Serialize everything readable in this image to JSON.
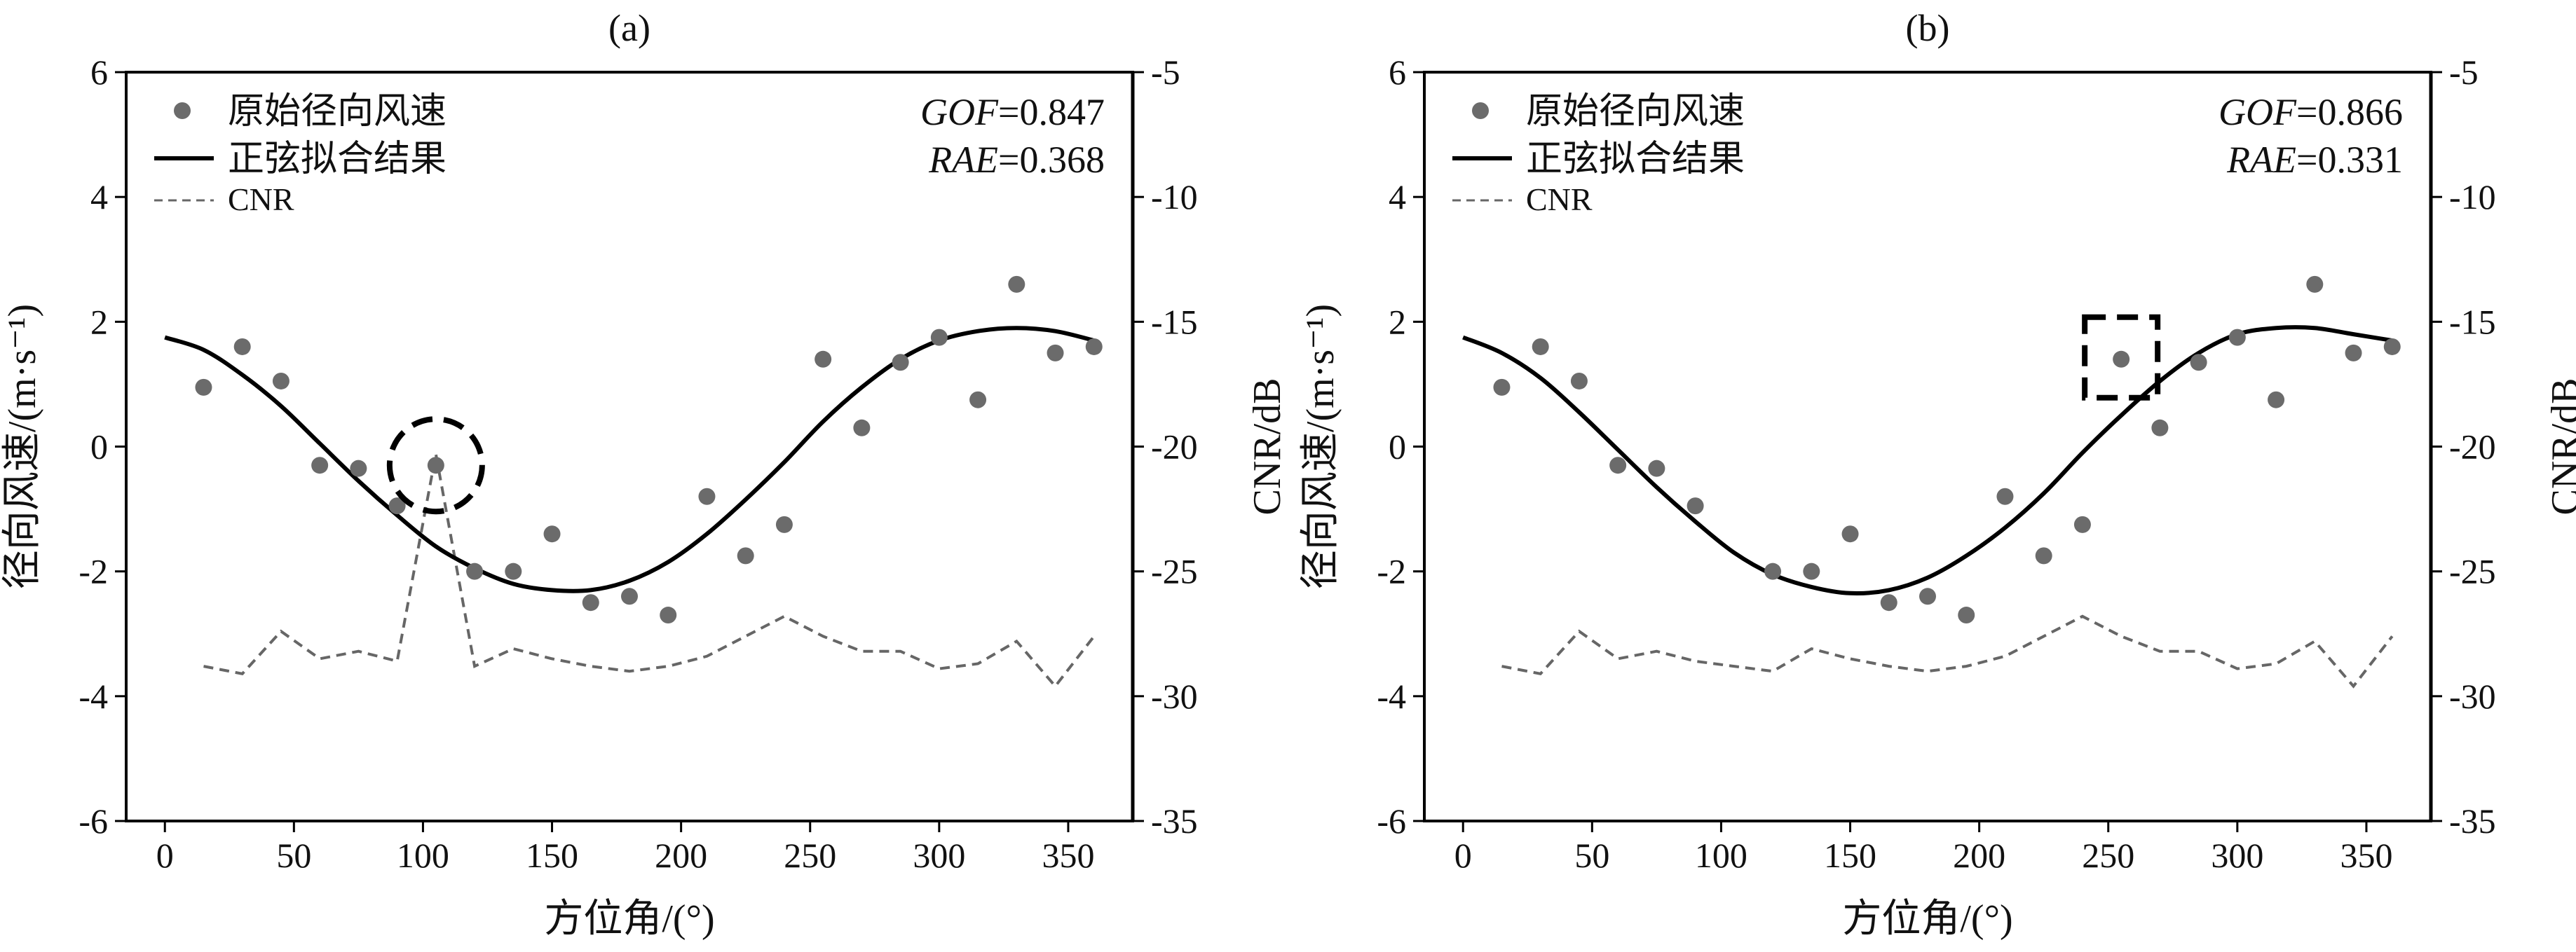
{
  "chart_data": [
    {
      "type": "scatter+line",
      "panel_label": "(a)",
      "xlabel": "方位角/(°)",
      "ylabel_left": "径向风速/(m·s⁻¹)",
      "ylabel_right": "CNR/dB",
      "xlim": [
        -15,
        375
      ],
      "ylim_left": [
        -6,
        6
      ],
      "ylim_right": [
        -35,
        -5
      ],
      "x_ticks": [
        0,
        50,
        100,
        150,
        200,
        250,
        300,
        350
      ],
      "y_left_ticks": [
        -6,
        -4,
        -2,
        0,
        2,
        4,
        6
      ],
      "y_right_ticks": [
        -35,
        -30,
        -25,
        -20,
        -15,
        -10,
        -5
      ],
      "legend_position": "top-left",
      "legend": [
        {
          "label": "原始径向风速",
          "style": "marker"
        },
        {
          "label": "正弦拟合结果",
          "style": "solid"
        },
        {
          "label": "CNR",
          "style": "dashed"
        }
      ],
      "metrics": {
        "gof": "0.847",
        "rae": "0.368"
      },
      "metric_names": {
        "gof": "GOF",
        "rae": "RAE"
      },
      "colors": {
        "points": "#6b6b6b",
        "fit": "#000000",
        "cnr": "#666666",
        "marker": "#000000"
      },
      "series": [
        {
          "name": "原始径向风速",
          "axis": "left",
          "x": [
            15,
            30,
            45,
            60,
            75,
            90,
            105,
            120,
            135,
            150,
            165,
            180,
            195,
            210,
            225,
            240,
            255,
            270,
            285,
            300,
            315,
            330,
            345,
            360
          ],
          "y": [
            0.95,
            1.6,
            1.05,
            -0.3,
            -0.35,
            -0.95,
            -0.3,
            -2.0,
            -2.0,
            -1.4,
            -2.5,
            -2.4,
            -2.7,
            -0.8,
            -1.75,
            -1.25,
            1.4,
            0.3,
            1.35,
            1.75,
            0.75,
            2.6,
            1.5,
            1.6
          ]
        },
        {
          "name": "正弦拟合结果",
          "axis": "left",
          "x": [
            0,
            15,
            30,
            45,
            60,
            75,
            90,
            105,
            120,
            135,
            150,
            165,
            180,
            195,
            210,
            225,
            240,
            255,
            270,
            285,
            300,
            315,
            330,
            345,
            360
          ],
          "y": [
            1.75,
            1.55,
            1.15,
            0.65,
            0.05,
            -0.55,
            -1.1,
            -1.6,
            -1.95,
            -2.2,
            -2.3,
            -2.3,
            -2.15,
            -1.85,
            -1.4,
            -0.85,
            -0.25,
            0.4,
            0.95,
            1.4,
            1.7,
            1.85,
            1.9,
            1.85,
            1.7
          ]
        },
        {
          "name": "CNR",
          "axis": "right",
          "x": [
            15,
            30,
            45,
            60,
            75,
            90,
            105,
            120,
            135,
            150,
            165,
            180,
            195,
            210,
            225,
            240,
            255,
            270,
            285,
            300,
            315,
            330,
            345,
            360
          ],
          "y": [
            -28.8,
            -29.1,
            -27.4,
            -28.5,
            -28.2,
            -28.6,
            -20.3,
            -28.8,
            -28.1,
            -28.5,
            -28.8,
            -29.0,
            -28.8,
            -28.4,
            -27.6,
            -26.8,
            -27.6,
            -28.2,
            -28.2,
            -28.9,
            -28.7,
            -27.8,
            -29.6,
            -27.6
          ]
        }
      ],
      "annotation": {
        "type": "dashed-circle",
        "x": 105,
        "y": -0.3
      }
    },
    {
      "type": "scatter+line",
      "panel_label": "(b)",
      "xlabel": "方位角/(°)",
      "ylabel_left": "径向风速/(m·s⁻¹)",
      "ylabel_right": "CNR/dB",
      "xlim": [
        -15,
        375
      ],
      "ylim_left": [
        -6,
        6
      ],
      "ylim_right": [
        -35,
        -5
      ],
      "x_ticks": [
        0,
        50,
        100,
        150,
        200,
        250,
        300,
        350
      ],
      "y_left_ticks": [
        -6,
        -4,
        -2,
        0,
        2,
        4,
        6
      ],
      "y_right_ticks": [
        -35,
        -30,
        -25,
        -20,
        -15,
        -10,
        -5
      ],
      "legend_position": "top-left",
      "legend": [
        {
          "label": "原始径向风速",
          "style": "marker"
        },
        {
          "label": "正弦拟合结果",
          "style": "solid"
        },
        {
          "label": "CNR",
          "style": "dashed"
        }
      ],
      "metrics": {
        "gof": "0.866",
        "rae": "0.331"
      },
      "metric_names": {
        "gof": "GOF",
        "rae": "RAE"
      },
      "colors": {
        "points": "#6b6b6b",
        "fit": "#000000",
        "cnr": "#666666",
        "marker": "#000000"
      },
      "series": [
        {
          "name": "原始径向风速",
          "axis": "left",
          "x": [
            15,
            30,
            45,
            60,
            75,
            90,
            120,
            135,
            150,
            165,
            180,
            195,
            210,
            225,
            240,
            255,
            270,
            285,
            300,
            315,
            330,
            345,
            360
          ],
          "y": [
            0.95,
            1.6,
            1.05,
            -0.3,
            -0.35,
            -0.95,
            -2.0,
            -2.0,
            -1.4,
            -2.5,
            -2.4,
            -2.7,
            -0.8,
            -1.75,
            -1.25,
            1.4,
            0.3,
            1.35,
            1.75,
            0.75,
            2.6,
            1.5,
            1.6
          ]
        },
        {
          "name": "正弦拟合结果",
          "axis": "left",
          "x": [
            0,
            15,
            30,
            45,
            60,
            75,
            90,
            105,
            120,
            135,
            150,
            165,
            180,
            195,
            210,
            225,
            240,
            255,
            270,
            285,
            300,
            315,
            330,
            345,
            360
          ],
          "y": [
            1.75,
            1.5,
            1.1,
            0.55,
            -0.05,
            -0.65,
            -1.2,
            -1.7,
            -2.05,
            -2.25,
            -2.35,
            -2.3,
            -2.1,
            -1.75,
            -1.3,
            -0.75,
            -0.1,
            0.5,
            1.05,
            1.5,
            1.8,
            1.9,
            1.9,
            1.8,
            1.7
          ]
        },
        {
          "name": "CNR",
          "axis": "right",
          "x": [
            15,
            30,
            45,
            60,
            75,
            90,
            105,
            120,
            135,
            150,
            165,
            180,
            195,
            210,
            225,
            240,
            255,
            270,
            285,
            300,
            315,
            330,
            345,
            360
          ],
          "y": [
            -28.8,
            -29.1,
            -27.4,
            -28.5,
            -28.2,
            -28.6,
            -28.8,
            -29.0,
            -28.1,
            -28.5,
            -28.8,
            -29.0,
            -28.8,
            -28.4,
            -27.6,
            -26.8,
            -27.6,
            -28.2,
            -28.2,
            -28.9,
            -28.7,
            -27.8,
            -29.6,
            -27.6
          ]
        }
      ],
      "annotation": {
        "type": "dashed-square",
        "x": 255,
        "y": 1.4
      }
    }
  ]
}
